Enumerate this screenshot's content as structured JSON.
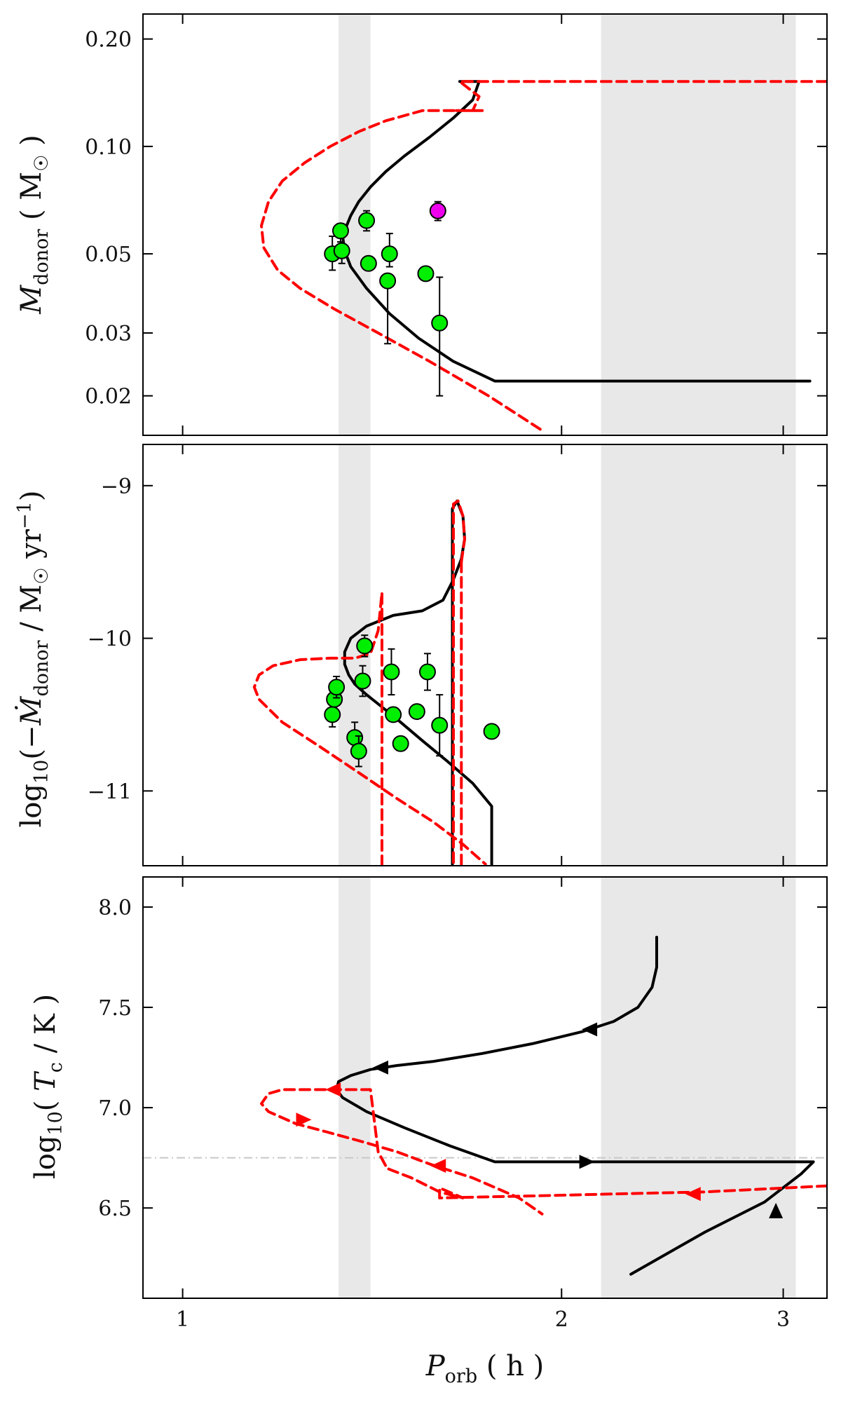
{
  "figure": {
    "x_axis": {
      "label_symbol": "P",
      "label_subscript": "orb",
      "label_unit": "( h )",
      "scale": "log",
      "range": [
        0.93,
        3.25
      ],
      "ticks": [
        {
          "value": 1,
          "label": "1"
        },
        {
          "value": 2,
          "label": "2"
        },
        {
          "value": 3,
          "label": "3"
        }
      ]
    },
    "shaded_bands": [
      {
        "from": 1.33,
        "to": 1.41,
        "color": "#e8e8e8"
      },
      {
        "from": 2.15,
        "to": 3.07,
        "color": "#e8e8e8"
      }
    ]
  },
  "chart_data": [
    {
      "type": "line",
      "panel": "top",
      "ylabel": "M_donor ( M☉ )",
      "yscale": "log",
      "ylim": [
        0.0155,
        0.235
      ],
      "y_ticks": [
        {
          "value": 0.2,
          "label": "0.20"
        },
        {
          "value": 0.1,
          "label": "0.10"
        },
        {
          "value": 0.05,
          "label": "0.05"
        },
        {
          "value": 0.03,
          "label": "0.03"
        },
        {
          "value": 0.02,
          "label": "0.02"
        }
      ],
      "series": [
        {
          "name": "model-solid",
          "color": "#000000",
          "style": "solid",
          "x": [
            1.66,
            1.72,
            1.7,
            1.64,
            1.57,
            1.5,
            1.45,
            1.41,
            1.38,
            1.36,
            1.35,
            1.34,
            1.345,
            1.36,
            1.4,
            1.46,
            1.54,
            1.64,
            1.77,
            3.15
          ],
          "y": [
            0.152,
            0.152,
            0.135,
            0.12,
            0.106,
            0.094,
            0.085,
            0.077,
            0.07,
            0.064,
            0.06,
            0.056,
            0.051,
            0.046,
            0.04,
            0.034,
            0.029,
            0.025,
            0.022,
            0.022
          ]
        },
        {
          "name": "model-dashed",
          "color": "#ff0000",
          "style": "dashed",
          "x": [
            3.25,
            1.66,
            1.72,
            1.7,
            1.65,
            1.73,
            1.55,
            1.45,
            1.38,
            1.31,
            1.25,
            1.2,
            1.17,
            1.155,
            1.16,
            1.19,
            1.24,
            1.32,
            1.43,
            1.57,
            1.75,
            1.93
          ],
          "y": [
            0.152,
            0.152,
            0.138,
            0.126,
            0.126,
            0.126,
            0.126,
            0.118,
            0.11,
            0.1,
            0.09,
            0.08,
            0.07,
            0.06,
            0.052,
            0.045,
            0.04,
            0.035,
            0.03,
            0.025,
            0.02,
            0.016
          ]
        }
      ],
      "points": [
        {
          "x": 1.315,
          "y": 0.05,
          "yerr_lo": 0.005,
          "yerr_hi": 0.006,
          "color": "#00ee00"
        },
        {
          "x": 1.335,
          "y": 0.058,
          "yerr_lo": 0.004,
          "yerr_hi": 0.0,
          "color": "#00ee00"
        },
        {
          "x": 1.338,
          "y": 0.051,
          "yerr_lo": 0.004,
          "yerr_hi": 0.0,
          "color": "#00ee00"
        },
        {
          "x": 1.4,
          "y": 0.062,
          "yerr_lo": 0.004,
          "yerr_hi": 0.004,
          "color": "#00ee00"
        },
        {
          "x": 1.405,
          "y": 0.047,
          "yerr_lo": 0.0,
          "yerr_hi": 0.0,
          "color": "#00ee00"
        },
        {
          "x": 1.46,
          "y": 0.05,
          "yerr_lo": 0.004,
          "yerr_hi": 0.007,
          "color": "#00ee00"
        },
        {
          "x": 1.455,
          "y": 0.042,
          "yerr_lo": 0.014,
          "yerr_hi": 0.0,
          "color": "#00ee00"
        },
        {
          "x": 1.56,
          "y": 0.044,
          "yerr_lo": 0.0,
          "yerr_hi": 0.0,
          "color": "#00ee00"
        },
        {
          "x": 1.6,
          "y": 0.032,
          "yerr_lo": 0.012,
          "yerr_hi": 0.011,
          "color": "#00ee00"
        },
        {
          "x": 1.595,
          "y": 0.066,
          "yerr_lo": 0.004,
          "yerr_hi": 0.004,
          "color": "#ee00ee"
        }
      ]
    },
    {
      "type": "line",
      "panel": "middle",
      "ylabel": "log10(−Ṁ_donor / M☉ yr⁻¹)",
      "yscale": "linear",
      "ylim": [
        -11.49,
        -8.73
      ],
      "y_ticks": [
        {
          "value": -9,
          "label": "−9"
        },
        {
          "value": -10,
          "label": "−10"
        },
        {
          "value": -11,
          "label": "−11"
        }
      ],
      "series": [
        {
          "name": "model-solid",
          "color": "#000000",
          "style": "solid",
          "x": [
            1.76,
            1.76,
            1.7,
            1.62,
            1.55,
            1.49,
            1.44,
            1.4,
            1.37,
            1.355,
            1.345,
            1.345,
            1.36,
            1.4,
            1.47,
            1.55,
            1.61,
            1.64,
            1.665,
            1.675,
            1.67,
            1.652,
            1.638,
            1.638,
            1.638
          ],
          "y": [
            -11.49,
            -11.1,
            -10.95,
            -10.8,
            -10.67,
            -10.55,
            -10.45,
            -10.37,
            -10.3,
            -10.24,
            -10.17,
            -10.09,
            -10.0,
            -9.92,
            -9.85,
            -9.82,
            -9.75,
            -9.62,
            -9.48,
            -9.35,
            -9.2,
            -9.1,
            -9.15,
            -10.0,
            -11.49
          ]
        },
        {
          "name": "model-dashed-1",
          "color": "#ff0000",
          "style": "dashed",
          "x": [
            1.665,
            1.675,
            1.67,
            1.655,
            1.641,
            1.641,
            1.641
          ],
          "y": [
            -9.5,
            -9.35,
            -9.2,
            -9.1,
            -9.12,
            -10.0,
            -11.49
          ]
        },
        {
          "name": "model-dashed-2",
          "color": "#ff0000",
          "style": "dashed",
          "x": [
            1.665,
            1.665
          ],
          "y": [
            -9.5,
            -11.49
          ]
        },
        {
          "name": "model-dashed-3",
          "color": "#ff0000",
          "style": "dashed",
          "x": [
            1.44,
            1.44,
            1.43,
            1.41,
            1.37,
            1.31,
            1.24,
            1.18,
            1.15,
            1.14,
            1.15,
            1.2,
            1.28,
            1.38,
            1.48,
            1.58,
            1.67,
            1.74
          ],
          "y": [
            -11.49,
            -9.7,
            -9.95,
            -10.1,
            -10.13,
            -10.13,
            -10.14,
            -10.18,
            -10.24,
            -10.32,
            -10.4,
            -10.55,
            -10.7,
            -10.88,
            -11.05,
            -11.2,
            -11.35,
            -11.48
          ]
        }
      ],
      "points": [
        {
          "x": 1.315,
          "y": -10.5,
          "yerr_lo": 0.08,
          "yerr_hi": 0.08,
          "color": "#00ee00"
        },
        {
          "x": 1.32,
          "y": -10.4,
          "yerr_lo": 0.0,
          "yerr_hi": 0.0,
          "color": "#00ee00"
        },
        {
          "x": 1.325,
          "y": -10.32,
          "yerr_lo": 0.07,
          "yerr_hi": 0.07,
          "color": "#00ee00"
        },
        {
          "x": 1.37,
          "y": -10.65,
          "yerr_lo": 0.1,
          "yerr_hi": 0.1,
          "color": "#00ee00"
        },
        {
          "x": 1.38,
          "y": -10.74,
          "yerr_lo": 0.1,
          "yerr_hi": 0.1,
          "color": "#00ee00"
        },
        {
          "x": 1.395,
          "y": -10.05,
          "yerr_lo": 0.07,
          "yerr_hi": 0.07,
          "color": "#00ee00"
        },
        {
          "x": 1.39,
          "y": -10.28,
          "yerr_lo": 0.1,
          "yerr_hi": 0.1,
          "color": "#00ee00"
        },
        {
          "x": 1.465,
          "y": -10.22,
          "yerr_lo": 0.15,
          "yerr_hi": 0.15,
          "color": "#00ee00"
        },
        {
          "x": 1.47,
          "y": -10.5,
          "yerr_lo": 0.0,
          "yerr_hi": 0.0,
          "color": "#00ee00"
        },
        {
          "x": 1.49,
          "y": -10.69,
          "yerr_lo": 0.0,
          "yerr_hi": 0.0,
          "color": "#00ee00"
        },
        {
          "x": 1.535,
          "y": -10.48,
          "yerr_lo": 0.0,
          "yerr_hi": 0.0,
          "color": "#00ee00"
        },
        {
          "x": 1.565,
          "y": -10.22,
          "yerr_lo": 0.12,
          "yerr_hi": 0.12,
          "color": "#00ee00"
        },
        {
          "x": 1.6,
          "y": -10.57,
          "yerr_lo": 0.2,
          "yerr_hi": 0.2,
          "color": "#00ee00"
        },
        {
          "x": 1.76,
          "y": -10.61,
          "yerr_lo": 0.0,
          "yerr_hi": 0.0,
          "color": "#00ee00"
        }
      ]
    },
    {
      "type": "line",
      "panel": "bottom",
      "ylabel": "log10( Tc / K )",
      "yscale": "linear",
      "ylim": [
        6.05,
        8.15
      ],
      "y_ticks": [
        {
          "value": 8.0,
          "label": "8.0"
        },
        {
          "value": 7.5,
          "label": "7.5"
        },
        {
          "value": 7.0,
          "label": "7.0"
        },
        {
          "value": 6.5,
          "label": "6.5"
        }
      ],
      "reference_lines": [
        {
          "y": 6.75,
          "color": "#c8c8c8",
          "style": "dashdot"
        }
      ],
      "series": [
        {
          "name": "model-solid",
          "color": "#000000",
          "style": "solid",
          "x": [
            2.38,
            2.38,
            2.36,
            2.3,
            2.2,
            2.08,
            1.9,
            1.73,
            1.58,
            1.48,
            1.41,
            1.36,
            1.33,
            1.325,
            1.34,
            1.4,
            1.5,
            1.63,
            1.77,
            2.3,
            3.17,
            3.1,
            2.9,
            2.6,
            2.27
          ],
          "y": [
            7.85,
            7.7,
            7.6,
            7.5,
            7.43,
            7.38,
            7.32,
            7.27,
            7.23,
            7.21,
            7.19,
            7.16,
            7.13,
            7.09,
            7.05,
            6.98,
            6.9,
            6.81,
            6.73,
            6.73,
            6.73,
            6.67,
            6.53,
            6.38,
            6.17
          ]
        },
        {
          "name": "model-dashed",
          "color": "#ff0000",
          "style": "dashed",
          "x": [
            3.25,
            2.6,
            2.2,
            1.9,
            1.73,
            1.6,
            1.6,
            1.67,
            1.6,
            1.52,
            1.45,
            1.45,
            1.43,
            1.41,
            1.2,
            1.17,
            1.155,
            1.17,
            1.23,
            1.3,
            1.39,
            1.48,
            1.57,
            1.7,
            1.85,
            1.93
          ],
          "y": [
            6.61,
            6.58,
            6.57,
            6.56,
            6.555,
            6.55,
            6.6,
            6.55,
            6.58,
            6.65,
            6.7,
            6.71,
            6.78,
            7.09,
            7.09,
            7.07,
            7.02,
            6.98,
            6.92,
            6.88,
            6.83,
            6.78,
            6.72,
            6.65,
            6.55,
            6.47
          ]
        }
      ],
      "arrows": [
        {
          "x": 2.11,
          "y": 7.39,
          "direction": "left",
          "color": "#000000"
        },
        {
          "x": 1.44,
          "y": 7.2,
          "direction": "left",
          "color": "#000000"
        },
        {
          "x": 2.09,
          "y": 6.73,
          "direction": "right",
          "color": "#000000"
        },
        {
          "x": 2.96,
          "y": 6.48,
          "direction": "up",
          "color": "#000000"
        },
        {
          "x": 1.32,
          "y": 7.09,
          "direction": "left",
          "color": "#ff0000"
        },
        {
          "x": 1.245,
          "y": 6.94,
          "direction": "right",
          "color": "#ff0000"
        },
        {
          "x": 1.6,
          "y": 6.71,
          "direction": "left",
          "color": "#ff0000"
        },
        {
          "x": 2.55,
          "y": 6.57,
          "direction": "left",
          "color": "#ff0000"
        }
      ]
    }
  ]
}
